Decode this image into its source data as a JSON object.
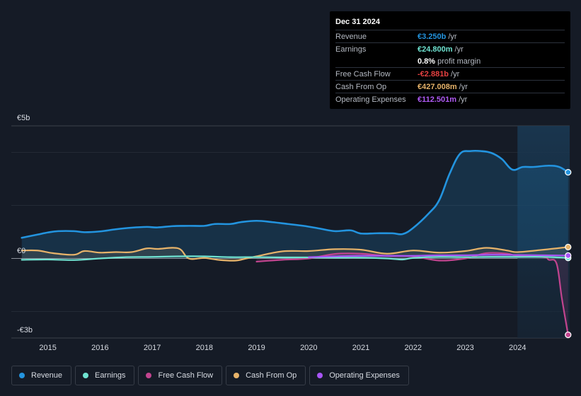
{
  "tooltip": {
    "date": "Dec 31 2024",
    "rows": [
      {
        "label": "Revenue",
        "value": "€3.250b",
        "unit": "/yr",
        "color": "#2394df"
      },
      {
        "label": "Earnings",
        "value": "€24.800m",
        "unit": "/yr",
        "color": "#6fe3d1"
      },
      {
        "label": "",
        "value": "0.8%",
        "unit": "profit margin",
        "color": "#ffffff"
      },
      {
        "label": "Free Cash Flow",
        "value": "-€2.881b",
        "unit": "/yr",
        "color": "#e64141"
      },
      {
        "label": "Cash From Op",
        "value": "€427.008m",
        "unit": "/yr",
        "color": "#e7b36a"
      },
      {
        "label": "Operating Expenses",
        "value": "€112.501m",
        "unit": "/yr",
        "color": "#b05bf5"
      }
    ]
  },
  "legend": [
    {
      "label": "Revenue",
      "color": "#2394df"
    },
    {
      "label": "Earnings",
      "color": "#6fe3d1"
    },
    {
      "label": "Free Cash Flow",
      "color": "#c2448f"
    },
    {
      "label": "Cash From Op",
      "color": "#e7b36a"
    },
    {
      "label": "Operating Expenses",
      "color": "#a855f7"
    }
  ],
  "chart_data": {
    "type": "line",
    "title": "",
    "xlabel": "",
    "ylabel": "",
    "y_axis_labels": {
      "top": "€5b",
      "zero": "€0",
      "bottom": "-€3b"
    },
    "ylim": [
      -3,
      5
    ],
    "xlim": [
      2014.3,
      2025.0
    ],
    "x_ticks": [
      2015,
      2016,
      2017,
      2018,
      2019,
      2020,
      2021,
      2022,
      2023,
      2024
    ],
    "highlight_from": 2024.0,
    "series": [
      {
        "name": "Revenue",
        "color": "#2394df",
        "fill": true,
        "points": [
          [
            2014.5,
            0.78
          ],
          [
            2014.8,
            0.9
          ],
          [
            2015.0,
            0.98
          ],
          [
            2015.2,
            1.03
          ],
          [
            2015.5,
            1.03
          ],
          [
            2015.7,
            0.99
          ],
          [
            2016.0,
            1.02
          ],
          [
            2016.3,
            1.1
          ],
          [
            2016.6,
            1.16
          ],
          [
            2016.9,
            1.19
          ],
          [
            2017.1,
            1.17
          ],
          [
            2017.4,
            1.22
          ],
          [
            2017.7,
            1.23
          ],
          [
            2018.0,
            1.23
          ],
          [
            2018.2,
            1.3
          ],
          [
            2018.5,
            1.3
          ],
          [
            2018.7,
            1.37
          ],
          [
            2019.0,
            1.42
          ],
          [
            2019.3,
            1.37
          ],
          [
            2019.6,
            1.3
          ],
          [
            2019.9,
            1.23
          ],
          [
            2020.2,
            1.13
          ],
          [
            2020.5,
            1.03
          ],
          [
            2020.8,
            1.06
          ],
          [
            2021.0,
            0.94
          ],
          [
            2021.3,
            0.95
          ],
          [
            2021.6,
            0.95
          ],
          [
            2021.8,
            0.92
          ],
          [
            2022.0,
            1.15
          ],
          [
            2022.3,
            1.7
          ],
          [
            2022.5,
            2.2
          ],
          [
            2022.7,
            3.2
          ],
          [
            2022.9,
            3.95
          ],
          [
            2023.1,
            4.05
          ],
          [
            2023.3,
            4.05
          ],
          [
            2023.5,
            3.98
          ],
          [
            2023.7,
            3.75
          ],
          [
            2023.9,
            3.35
          ],
          [
            2024.1,
            3.45
          ],
          [
            2024.3,
            3.45
          ],
          [
            2024.6,
            3.5
          ],
          [
            2024.8,
            3.45
          ],
          [
            2024.97,
            3.25
          ]
        ]
      },
      {
        "name": "Earnings",
        "color": "#6fe3d1",
        "fill": false,
        "points": [
          [
            2014.5,
            -0.05
          ],
          [
            2015.0,
            -0.04
          ],
          [
            2015.5,
            -0.06
          ],
          [
            2016.0,
            0.0
          ],
          [
            2016.5,
            0.05
          ],
          [
            2017.0,
            0.06
          ],
          [
            2017.5,
            0.08
          ],
          [
            2018.0,
            0.08
          ],
          [
            2018.5,
            0.05
          ],
          [
            2019.0,
            0.05
          ],
          [
            2019.5,
            0.04
          ],
          [
            2020.0,
            0.04
          ],
          [
            2020.5,
            0.03
          ],
          [
            2021.0,
            0.03
          ],
          [
            2021.5,
            0.0
          ],
          [
            2021.8,
            -0.04
          ],
          [
            2022.0,
            0.02
          ],
          [
            2022.5,
            0.06
          ],
          [
            2023.0,
            0.05
          ],
          [
            2023.5,
            0.06
          ],
          [
            2024.0,
            0.06
          ],
          [
            2024.5,
            0.06
          ],
          [
            2024.97,
            0.02
          ]
        ]
      },
      {
        "name": "Cash From Op",
        "color": "#e7b36a",
        "fill": true,
        "points": [
          [
            2014.5,
            0.3
          ],
          [
            2014.8,
            0.3
          ],
          [
            2015.1,
            0.2
          ],
          [
            2015.5,
            0.14
          ],
          [
            2015.7,
            0.28
          ],
          [
            2016.0,
            0.22
          ],
          [
            2016.3,
            0.24
          ],
          [
            2016.6,
            0.24
          ],
          [
            2016.9,
            0.38
          ],
          [
            2017.1,
            0.36
          ],
          [
            2017.5,
            0.38
          ],
          [
            2017.7,
            0.0
          ],
          [
            2018.0,
            0.02
          ],
          [
            2018.3,
            -0.06
          ],
          [
            2018.6,
            -0.08
          ],
          [
            2018.8,
            0.0
          ],
          [
            2019.0,
            0.08
          ],
          [
            2019.5,
            0.27
          ],
          [
            2020.0,
            0.28
          ],
          [
            2020.5,
            0.35
          ],
          [
            2021.0,
            0.33
          ],
          [
            2021.5,
            0.18
          ],
          [
            2022.0,
            0.3
          ],
          [
            2022.5,
            0.22
          ],
          [
            2023.0,
            0.28
          ],
          [
            2023.4,
            0.4
          ],
          [
            2023.8,
            0.3
          ],
          [
            2024.0,
            0.24
          ],
          [
            2024.5,
            0.33
          ],
          [
            2024.97,
            0.43
          ]
        ]
      },
      {
        "name": "Free Cash Flow",
        "color": "#c2448f",
        "fill": true,
        "points": [
          [
            2019.0,
            -0.12
          ],
          [
            2019.5,
            -0.05
          ],
          [
            2020.0,
            0.0
          ],
          [
            2020.5,
            0.17
          ],
          [
            2021.0,
            0.18
          ],
          [
            2021.5,
            0.1
          ],
          [
            2022.0,
            0.08
          ],
          [
            2022.5,
            -0.08
          ],
          [
            2023.0,
            0.0
          ],
          [
            2023.4,
            0.2
          ],
          [
            2023.8,
            0.18
          ],
          [
            2024.0,
            0.1
          ],
          [
            2024.5,
            0.05
          ],
          [
            2024.6,
            -0.05
          ],
          [
            2024.75,
            -0.2
          ],
          [
            2024.85,
            -1.5
          ],
          [
            2024.97,
            -2.88
          ]
        ]
      },
      {
        "name": "Operating Expenses",
        "color": "#a855f7",
        "fill": false,
        "points": [
          [
            2020.0,
            0.05
          ],
          [
            2020.5,
            0.08
          ],
          [
            2021.0,
            0.1
          ],
          [
            2021.5,
            0.1
          ],
          [
            2022.0,
            0.1
          ],
          [
            2022.5,
            0.12
          ],
          [
            2023.0,
            0.12
          ],
          [
            2023.5,
            0.14
          ],
          [
            2024.0,
            0.13
          ],
          [
            2024.5,
            0.12
          ],
          [
            2024.97,
            0.11
          ]
        ]
      }
    ]
  }
}
